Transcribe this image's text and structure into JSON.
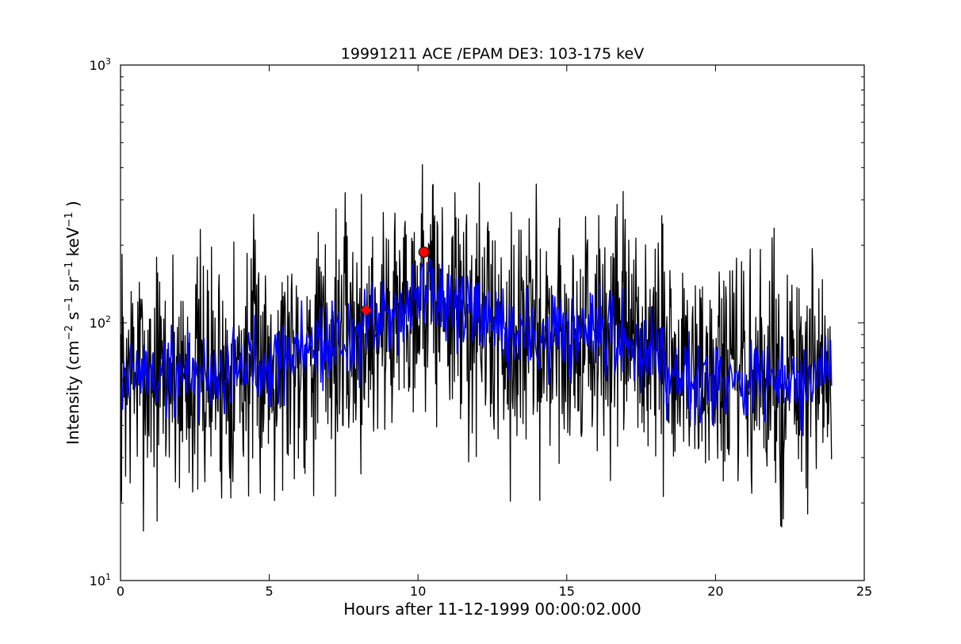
{
  "chart_data": {
    "type": "line",
    "title": "19991211 ACE /EPAM DE3: 103-175 keV",
    "xlabel": "Hours after 11-12-1999 00:00:02.000",
    "ylabel": {
      "prefix": "Intensity (cm",
      "exp1": "−2",
      "mid1": " s",
      "exp2": "−1",
      "mid2": " sr",
      "exp3": "−1",
      "mid3": " keV",
      "exp4": "−1",
      "suffix": " )"
    },
    "xlim": [
      0,
      25
    ],
    "ylim": [
      10,
      1000
    ],
    "yscale": "log",
    "grid": false,
    "x_ticks": [
      {
        "value": 0,
        "label": "0"
      },
      {
        "value": 5,
        "label": "5"
      },
      {
        "value": 10,
        "label": "10"
      },
      {
        "value": 15,
        "label": "15"
      },
      {
        "value": 20,
        "label": "20"
      },
      {
        "value": 25,
        "label": "25"
      }
    ],
    "y_ticks": [
      {
        "value": 10,
        "base": "10",
        "exp": "1"
      },
      {
        "value": 100,
        "base": "10",
        "exp": "2"
      },
      {
        "value": 1000,
        "base": "10",
        "exp": "3"
      }
    ],
    "series": [
      {
        "color": "#000000",
        "x": [
          0,
          0.5,
          1,
          1.5,
          2,
          2.5,
          3,
          3.5,
          4,
          4.5,
          5,
          5.5,
          6,
          6.5,
          7,
          7.5,
          8,
          8.5,
          9,
          9.5,
          10,
          10.25,
          10.5,
          11,
          11.5,
          12,
          12.5,
          13,
          13.5,
          14,
          14.5,
          15,
          15.5,
          16,
          16.5,
          17,
          17.5,
          18,
          18.5,
          19,
          19.5,
          20,
          20.5,
          21,
          21.5,
          22,
          22.5,
          23,
          23.5,
          23.9
        ],
        "y": [
          62,
          64,
          63,
          62,
          64,
          63,
          63,
          64,
          66,
          70,
          73,
          75,
          79,
          82,
          83,
          85,
          88,
          95,
          105,
          118,
          130,
          135,
          128,
          118,
          108,
          100,
          95,
          92,
          90,
          89,
          88,
          87,
          86,
          85,
          84,
          83,
          80,
          75,
          68,
          65,
          63,
          62,
          61,
          60,
          59,
          58,
          58,
          57,
          57,
          57
        ],
        "noise": 0.55,
        "seed": 7,
        "samples": 1400
      },
      {
        "color": "#0000ff",
        "x": [
          0,
          0.5,
          1,
          1.5,
          2,
          2.5,
          3,
          3.5,
          4,
          4.5,
          5,
          5.5,
          6,
          6.5,
          7,
          7.5,
          8,
          8.5,
          9,
          9.5,
          10,
          10.25,
          10.5,
          11,
          11.5,
          12,
          12.5,
          13,
          13.5,
          14,
          14.5,
          15,
          15.5,
          16,
          16.5,
          17,
          17.5,
          18,
          18.5,
          19,
          19.5,
          20,
          20.5,
          21,
          21.5,
          22,
          22.5,
          23,
          23.5,
          23.9
        ],
        "y": [
          62,
          64,
          63,
          62,
          64,
          63,
          63,
          64,
          66,
          70,
          73,
          75,
          79,
          82,
          83,
          85,
          88,
          95,
          105,
          118,
          130,
          135,
          128,
          118,
          108,
          100,
          95,
          92,
          90,
          89,
          88,
          87,
          86,
          85,
          84,
          83,
          80,
          75,
          68,
          65,
          63,
          62,
          61,
          60,
          59,
          58,
          58,
          57,
          57,
          57
        ],
        "noise": 0.2,
        "seed": 19,
        "samples": 700
      }
    ],
    "markers": [
      {
        "x": 8.25,
        "y": 112,
        "color": "#ff0000",
        "symbol": "diamond"
      },
      {
        "x": 10.2,
        "y": 188,
        "color": "#ff0000",
        "symbol": "circle"
      }
    ]
  }
}
